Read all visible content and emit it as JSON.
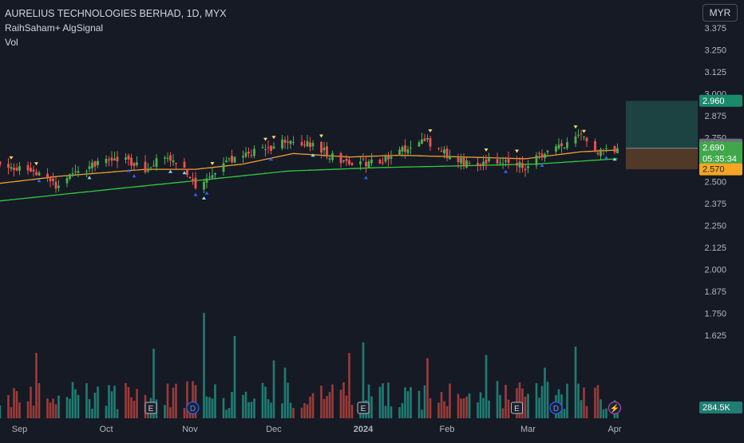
{
  "header": {
    "symbol_title": "AURELIUS TECHNOLOGIES BERHAD, 1D, MYX",
    "indicator_name": "RaihSaham+ AlgSignal",
    "volume_label": "Vol",
    "currency": "MYR"
  },
  "price_axis": {
    "ticks": [
      "3.375",
      "3.250",
      "3.125",
      "3.000",
      "2.875",
      "2.750",
      "2.625",
      "2.500",
      "2.375",
      "2.250",
      "2.125",
      "2.000",
      "1.875",
      "1.750",
      "1.625"
    ]
  },
  "price_labels": {
    "target": "2.960",
    "high": "2.710",
    "last": "2.690",
    "countdown": "05:35:34",
    "stop": "2.570",
    "volume": "284.5K"
  },
  "time_axis": [
    "Sep",
    "Oct",
    "Nov",
    "Dec",
    "2024",
    "Feb",
    "Mar",
    "Apr"
  ],
  "events": [
    {
      "type": "E",
      "label": "E"
    },
    {
      "type": "D",
      "label": "D"
    },
    {
      "type": "E",
      "label": "E"
    },
    {
      "type": "E",
      "label": "E"
    },
    {
      "type": "D",
      "label": "D"
    },
    {
      "type": "bolt",
      "label": "⚡"
    }
  ],
  "colors": {
    "background": "#161a25",
    "up": "#26a69a",
    "up_candle": "#4caf50",
    "down": "#ef5350",
    "ma_fast": "#f0a030",
    "ma_slow": "#2ecc40",
    "target_zone": "#1f4a48",
    "stop_zone": "#5a4028"
  },
  "chart_data": {
    "type": "candlestick",
    "title": "AURELIUS TECHNOLOGIES BERHAD, 1D, MYX",
    "x_range": [
      "2023-08-25",
      "2024-04-05"
    ],
    "ylim": [
      1.625,
      3.375
    ],
    "last_price": 2.69,
    "position_tool": {
      "entry": 2.69,
      "target": 2.96,
      "stop": 2.57
    },
    "close_anchors": [
      {
        "date": "2023-08-25",
        "close": 2.6
      },
      {
        "date": "2023-09-06",
        "close": 2.55
      },
      {
        "date": "2023-09-14",
        "close": 2.47
      },
      {
        "date": "2023-09-22",
        "close": 2.57
      },
      {
        "date": "2023-10-06",
        "close": 2.63
      },
      {
        "date": "2023-10-17",
        "close": 2.57
      },
      {
        "date": "2023-10-23",
        "close": 2.65
      },
      {
        "date": "2023-10-31",
        "close": 2.55
      },
      {
        "date": "2023-11-03",
        "close": 2.47
      },
      {
        "date": "2023-11-08",
        "close": 2.55
      },
      {
        "date": "2023-11-15",
        "close": 2.62
      },
      {
        "date": "2023-11-22",
        "close": 2.66
      },
      {
        "date": "2023-11-30",
        "close": 2.68
      },
      {
        "date": "2023-12-07",
        "close": 2.74
      },
      {
        "date": "2023-12-13",
        "close": 2.72
      },
      {
        "date": "2023-12-20",
        "close": 2.66
      },
      {
        "date": "2023-12-29",
        "close": 2.6
      },
      {
        "date": "2024-01-08",
        "close": 2.62
      },
      {
        "date": "2024-01-15",
        "close": 2.68
      },
      {
        "date": "2024-01-24",
        "close": 2.74
      },
      {
        "date": "2024-01-31",
        "close": 2.66
      },
      {
        "date": "2024-02-08",
        "close": 2.6
      },
      {
        "date": "2024-02-20",
        "close": 2.62
      },
      {
        "date": "2024-02-29",
        "close": 2.58
      },
      {
        "date": "2024-03-07",
        "close": 2.66
      },
      {
        "date": "2024-03-13",
        "close": 2.7
      },
      {
        "date": "2024-03-20",
        "close": 2.75
      },
      {
        "date": "2024-03-26",
        "close": 2.68
      },
      {
        "date": "2024-04-01",
        "close": 2.69
      }
    ],
    "ma_fast": [
      {
        "date": "2023-08-25",
        "value": 2.49
      },
      {
        "date": "2023-09-15",
        "value": 2.53
      },
      {
        "date": "2023-10-16",
        "value": 2.57
      },
      {
        "date": "2023-11-03",
        "value": 2.57
      },
      {
        "date": "2023-11-20",
        "value": 2.6
      },
      {
        "date": "2023-12-08",
        "value": 2.66
      },
      {
        "date": "2023-12-28",
        "value": 2.64
      },
      {
        "date": "2024-01-15",
        "value": 2.65
      },
      {
        "date": "2024-02-07",
        "value": 2.64
      },
      {
        "date": "2024-02-29",
        "value": 2.63
      },
      {
        "date": "2024-03-20",
        "value": 2.67
      },
      {
        "date": "2024-04-02",
        "value": 2.68
      }
    ],
    "ma_slow": [
      {
        "date": "2023-08-25",
        "value": 2.39
      },
      {
        "date": "2023-10-06",
        "value": 2.46
      },
      {
        "date": "2023-11-06",
        "value": 2.51
      },
      {
        "date": "2023-12-06",
        "value": 2.56
      },
      {
        "date": "2024-01-08",
        "value": 2.58
      },
      {
        "date": "2024-02-07",
        "value": 2.59
      },
      {
        "date": "2024-03-04",
        "value": 2.6
      },
      {
        "date": "2024-04-02",
        "value": 2.63
      }
    ],
    "volume_ylim": [
      0,
      1.0
    ],
    "volume_note": "relative volume bars, last 284.5K"
  }
}
